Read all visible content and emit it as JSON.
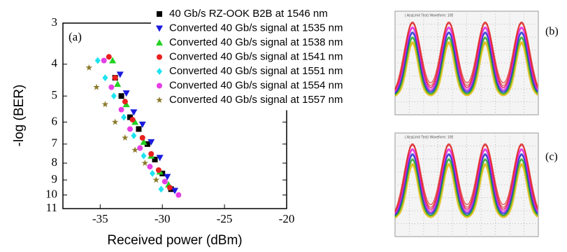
{
  "chart_data": {
    "type": "scatter",
    "panel_label": "(a)",
    "y_label": "-log (BER)",
    "x_label": "Received power (dBm)",
    "xlim": [
      -38,
      -20
    ],
    "xticks": [
      -35,
      -30,
      -25,
      -20
    ],
    "ylim": [
      3,
      11
    ],
    "yticks": [
      3,
      4,
      5,
      6,
      7,
      8,
      9,
      10,
      11
    ],
    "y_log": true,
    "y_inverted": true,
    "legend": "top-right",
    "series": [
      {
        "name": "40 Gb/s RZ-OOK B2B at 1546 nm",
        "color": "#000000",
        "marker": "square",
        "x": [
          -33.8,
          -33.3,
          -32.6,
          -31.9,
          -31.2,
          -30.6,
          -30.0,
          -29.3
        ],
        "values": [
          4.4,
          5.0,
          5.8,
          6.3,
          7.0,
          7.8,
          8.6,
          9.6
        ]
      },
      {
        "name": "Converted 40 Gb/s signal at 1535 nm",
        "color": "#1a1adf",
        "marker": "triangle-down",
        "x": [
          -33.4,
          -32.9,
          -32.3,
          -31.6,
          -30.9,
          -30.2,
          -29.6,
          -29.0
        ],
        "values": [
          4.3,
          4.9,
          5.6,
          6.1,
          6.9,
          7.7,
          8.8,
          9.7
        ]
      },
      {
        "name": "Converted 40 Gb/s signal at 1538 nm",
        "color": "#22d022",
        "marker": "triangle-up",
        "x": [
          -34.0,
          -33.6,
          -32.9,
          -32.2,
          -31.5,
          -30.9,
          -30.2,
          -29.5
        ],
        "values": [
          3.9,
          4.6,
          5.3,
          6.0,
          6.9,
          7.6,
          8.5,
          9.3
        ]
      },
      {
        "name": "Converted 40 Gb/s signal at 1541 nm",
        "color": "#e8201e",
        "marker": "circle",
        "x": [
          -34.3,
          -33.8,
          -33.0,
          -32.4,
          -31.6,
          -30.9,
          -30.3,
          -29.4
        ],
        "values": [
          3.8,
          4.4,
          5.2,
          5.9,
          6.7,
          7.5,
          8.4,
          9.5
        ]
      },
      {
        "name": "Converted 40 Gb/s signal at 1551 nm",
        "color": "#1ee3f0",
        "marker": "diamond",
        "x": [
          -35.2,
          -34.6,
          -33.9,
          -33.1,
          -32.3,
          -31.5,
          -30.8,
          -30.1
        ],
        "values": [
          3.9,
          4.4,
          5.0,
          5.8,
          6.6,
          7.6,
          8.6,
          9.6
        ]
      },
      {
        "name": "Converted 40 Gb/s signal at 1554 nm",
        "color": "#e53ee5",
        "marker": "circle",
        "x": [
          -34.7,
          -34.1,
          -33.3,
          -32.6,
          -31.8,
          -31.0,
          -29.8,
          -28.7
        ],
        "values": [
          3.9,
          4.7,
          5.5,
          6.3,
          7.2,
          8.2,
          9.1,
          10.0
        ]
      },
      {
        "name": "Converted 40 Gb/s signal at 1557 nm",
        "color": "#8b7a2a",
        "marker": "star",
        "x": [
          -35.9,
          -35.3,
          -34.6,
          -33.8,
          -33.0,
          -32.2,
          -31.4,
          -30.5
        ],
        "values": [
          4.1,
          4.7,
          5.3,
          6.0,
          6.7,
          7.3,
          8.0,
          9.0
        ]
      }
    ]
  },
  "eye_diagrams": [
    {
      "label": "(b)",
      "caption": "( AcqLimit Test) Waveform: 100"
    },
    {
      "label": "(c)",
      "caption": "( AcqLimit Test) Waveform: 100"
    }
  ]
}
